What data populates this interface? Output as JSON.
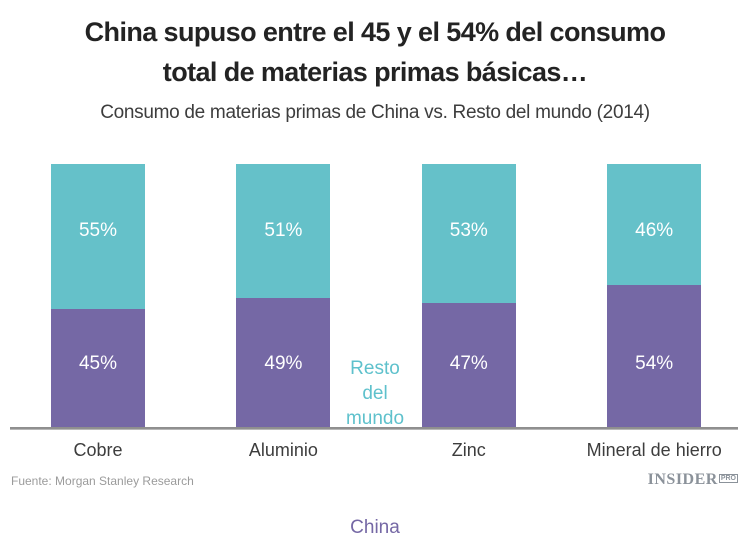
{
  "header": {
    "title_line1": "China supuso entre el 45 y el 54% del consumo",
    "title_line2": "total de materias primas básicas…",
    "subtitle": "Consumo de materias primas de China vs. Resto del mundo (2014)"
  },
  "chart_data": {
    "type": "bar",
    "stacked": true,
    "normalized_to_100": true,
    "title": "Consumo de materias primas de China vs. Resto del mundo (2014)",
    "categories": [
      "Cobre",
      "Aluminio",
      "Zinc",
      "Mineral de hierro"
    ],
    "series": [
      {
        "name": "China",
        "color": "#7568a5",
        "values": [
          45,
          49,
          47,
          54
        ],
        "labels": [
          "45%",
          "49%",
          "47%",
          "54%"
        ]
      },
      {
        "name": "Resto del mundo",
        "color": "#65c1c9",
        "values": [
          55,
          51,
          53,
          46
        ],
        "labels": [
          "55%",
          "51%",
          "53%",
          "46%"
        ]
      }
    ],
    "unit": "%",
    "ylim": [
      0,
      100
    ],
    "grid": false,
    "legend": {
      "position": "between-bars",
      "rest_lines": [
        "Resto",
        "del",
        "mundo"
      ],
      "china_label": "China",
      "rest_color": "#5ec1cc",
      "china_color": "#7568a5"
    }
  },
  "footer": {
    "source": "Fuente: Morgan Stanley Research",
    "brand": "INSIDER",
    "brand_suffix": "PRO"
  }
}
